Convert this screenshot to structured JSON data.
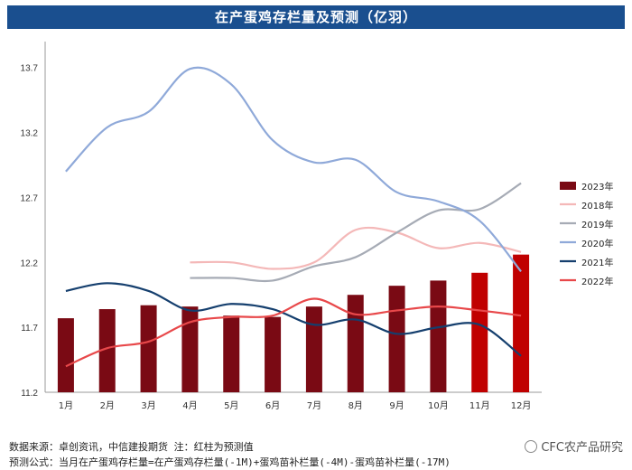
{
  "title": "在产蛋鸡存栏量及预测（亿羽）",
  "source_note": "数据来源：卓创资讯，中信建投期货 注：红柱为预测值",
  "formula_note": "预测公式：当月在产蛋鸡存栏量=在产蛋鸡存栏量(-1M)+蛋鸡苗补栏量(-4M)-蛋鸡苗补栏量(-17M)",
  "watermark": "CFC农产品研究",
  "colors": {
    "bar_actual": "#7a0a14",
    "bar_forecast": "#c00000",
    "s2018": "#f4b8b8",
    "s2019": "#a6abb5",
    "s2020": "#8fa9d9",
    "s2021": "#153f6e",
    "s2022": "#e8484a"
  },
  "chart_data": {
    "type": "bar",
    "categories": [
      "1月",
      "2月",
      "3月",
      "4月",
      "5月",
      "6月",
      "7月",
      "8月",
      "9月",
      "10月",
      "11月",
      "12月"
    ],
    "ylim": [
      11.2,
      13.9
    ],
    "yticks": [
      11.2,
      11.7,
      12.2,
      12.7,
      13.2,
      13.7
    ],
    "ytick_labels": [
      "11.2",
      "11.7",
      "12.2",
      "12.7",
      "13.2",
      "13.7"
    ],
    "bars": {
      "name": "2023年",
      "values": [
        11.77,
        11.84,
        11.87,
        11.86,
        11.79,
        11.78,
        11.86,
        11.95,
        12.02,
        12.06,
        12.12,
        12.26
      ],
      "forecast": [
        false,
        false,
        false,
        false,
        false,
        false,
        false,
        false,
        false,
        false,
        true,
        true
      ]
    },
    "series": [
      {
        "name": "2018年",
        "color_key": "s2018",
        "values": [
          null,
          null,
          null,
          12.2,
          12.2,
          12.15,
          12.2,
          12.45,
          12.43,
          12.31,
          12.35,
          12.28
        ]
      },
      {
        "name": "2019年",
        "color_key": "s2019",
        "values": [
          null,
          null,
          null,
          12.08,
          12.08,
          12.06,
          12.17,
          12.24,
          12.43,
          12.6,
          12.61,
          12.81
        ]
      },
      {
        "name": "2020年",
        "color_key": "s2020",
        "values": [
          12.9,
          13.24,
          13.36,
          13.69,
          13.57,
          13.14,
          12.97,
          12.99,
          12.74,
          12.67,
          12.52,
          12.13
        ]
      },
      {
        "name": "2021年",
        "color_key": "s2021",
        "values": [
          11.98,
          12.04,
          11.98,
          11.83,
          11.88,
          11.84,
          11.72,
          11.76,
          11.65,
          11.7,
          11.72,
          11.48
        ]
      },
      {
        "name": "2022年",
        "color_key": "s2022",
        "values": [
          11.4,
          11.54,
          11.59,
          11.74,
          11.78,
          11.79,
          11.92,
          11.8,
          11.83,
          11.86,
          11.83,
          11.79
        ]
      }
    ],
    "legend_position": "right"
  }
}
